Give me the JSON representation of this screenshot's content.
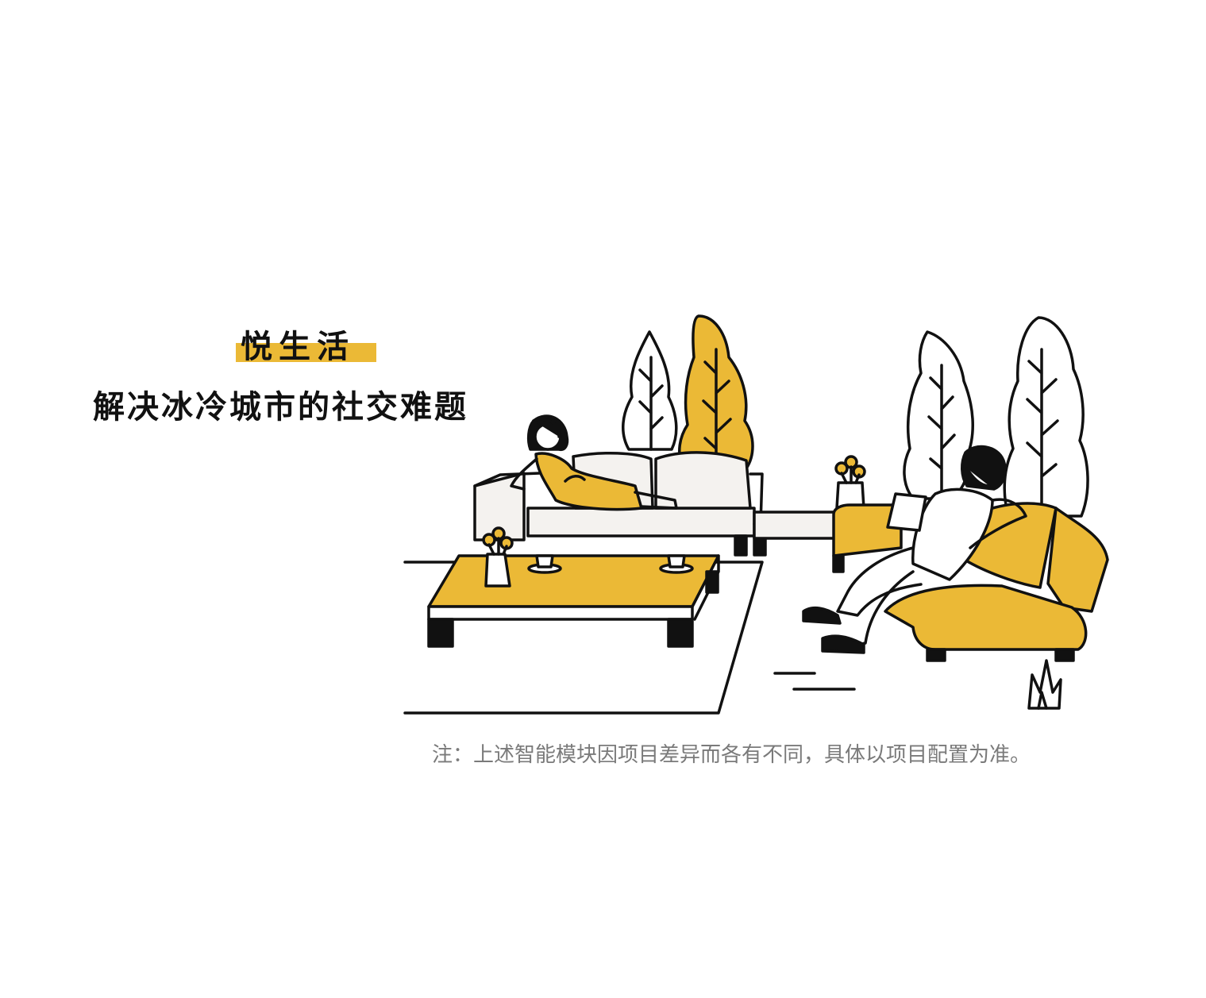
{
  "heading": {
    "title": "悦生活",
    "subtitle": "解决冰冷城市的社交难题"
  },
  "note": "注：上述智能模块因项目差异而各有不同，具体以项目配置为准。",
  "colors": {
    "accent": "#EBB936",
    "ink": "#111111",
    "note": "#7a7a7a",
    "cushion": "#F4F2EF"
  }
}
